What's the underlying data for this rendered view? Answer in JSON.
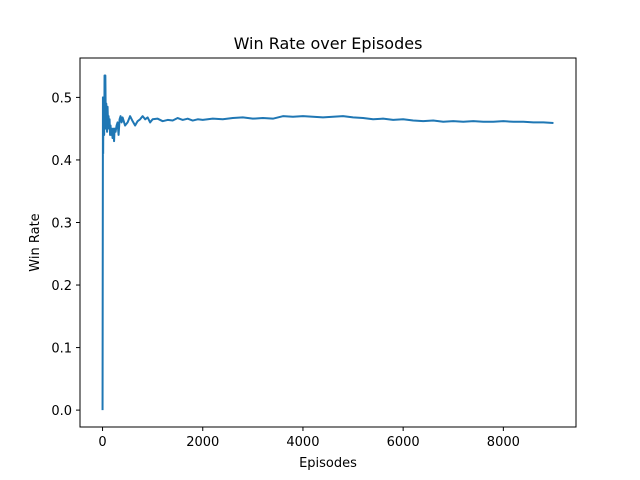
{
  "chart_data": {
    "type": "line",
    "title": "Win Rate over Episodes",
    "xlabel": "Episodes",
    "ylabel": "Win Rate",
    "xlim": [
      -450,
      9450
    ],
    "ylim": [
      -0.027,
      0.563
    ],
    "xticks": [
      0,
      2000,
      4000,
      6000,
      8000
    ],
    "yticks": [
      0.0,
      0.1,
      0.2,
      0.3,
      0.4,
      0.5
    ],
    "grid": false,
    "color": "#1f77b4",
    "series": [
      {
        "x": [
          0,
          4,
          8,
          12,
          16,
          20,
          24,
          28,
          32,
          36,
          40,
          44,
          48,
          52,
          56,
          60,
          65,
          70,
          75,
          80,
          90,
          100,
          110,
          120,
          130,
          140,
          150,
          160,
          170,
          180,
          190,
          200,
          210,
          220,
          230,
          240,
          250,
          260,
          280,
          300,
          320,
          340,
          360,
          380,
          400,
          450,
          500,
          550,
          600,
          650,
          700,
          750,
          800,
          850,
          900,
          950,
          1000,
          1100,
          1200,
          1300,
          1400,
          1500,
          1600,
          1700,
          1800,
          1900,
          2000,
          2200,
          2400,
          2600,
          2800,
          3000,
          3200,
          3400,
          3600,
          3800,
          4000,
          4200,
          4400,
          4600,
          4800,
          5000,
          5200,
          5400,
          5600,
          5800,
          6000,
          6200,
          6400,
          6600,
          6800,
          7000,
          7200,
          7400,
          7600,
          7800,
          8000,
          8200,
          8400,
          8600,
          8800,
          9000
        ],
        "y": [
          0.0,
          0.25,
          0.5,
          0.41,
          0.48,
          0.45,
          0.5,
          0.46,
          0.44,
          0.47,
          0.535,
          0.5,
          0.52,
          0.49,
          0.535,
          0.5,
          0.46,
          0.45,
          0.49,
          0.47,
          0.445,
          0.485,
          0.455,
          0.47,
          0.45,
          0.465,
          0.44,
          0.455,
          0.44,
          0.45,
          0.445,
          0.435,
          0.45,
          0.44,
          0.43,
          0.45,
          0.445,
          0.445,
          0.455,
          0.46,
          0.44,
          0.465,
          0.47,
          0.46,
          0.468,
          0.455,
          0.46,
          0.47,
          0.462,
          0.455,
          0.462,
          0.465,
          0.47,
          0.465,
          0.468,
          0.46,
          0.465,
          0.466,
          0.462,
          0.464,
          0.463,
          0.467,
          0.464,
          0.466,
          0.463,
          0.465,
          0.464,
          0.466,
          0.465,
          0.467,
          0.468,
          0.466,
          0.467,
          0.466,
          0.47,
          0.469,
          0.47,
          0.469,
          0.468,
          0.469,
          0.47,
          0.468,
          0.467,
          0.465,
          0.466,
          0.464,
          0.465,
          0.463,
          0.462,
          0.463,
          0.461,
          0.462,
          0.461,
          0.462,
          0.461,
          0.461,
          0.462,
          0.461,
          0.461,
          0.46,
          0.46,
          0.459
        ]
      }
    ]
  }
}
